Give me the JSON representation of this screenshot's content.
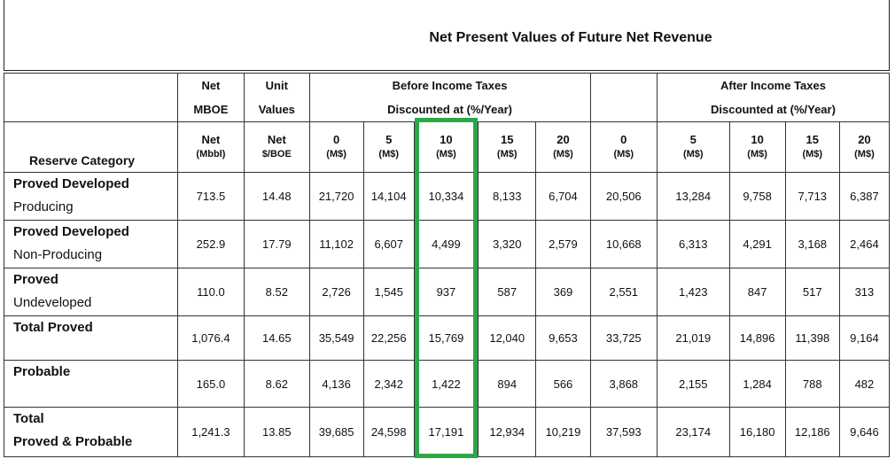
{
  "title": "Net Present Values of Future Net Revenue",
  "header": {
    "net_mboe": [
      "Net",
      "MBOE"
    ],
    "unit_values": [
      "Unit",
      "Values"
    ],
    "before_tax": [
      "Before Income Taxes",
      "Discounted at (%/Year)"
    ],
    "after_tax": [
      "After Income Taxes",
      "Discounted at (%/Year)"
    ],
    "reserve_category": "Reserve Category",
    "subheaders": [
      {
        "top": "Net",
        "bottom": "(Mbbl)"
      },
      {
        "top": "Net",
        "bottom": "$/BOE"
      },
      {
        "top": "0",
        "bottom": "(M$)"
      },
      {
        "top": "5",
        "bottom": "(M$)"
      },
      {
        "top": "10",
        "bottom": "(M$)"
      },
      {
        "top": "15",
        "bottom": "(M$)"
      },
      {
        "top": "20",
        "bottom": "(M$)"
      },
      {
        "top": "0",
        "bottom": "(M$)"
      },
      {
        "top": "5",
        "bottom": "(M$)"
      },
      {
        "top": "10",
        "bottom": "(M$)"
      },
      {
        "top": "15",
        "bottom": "(M$)"
      },
      {
        "top": "20",
        "bottom": "(M$)"
      }
    ]
  },
  "rows": [
    {
      "cat": [
        "Proved Developed",
        "Producing"
      ],
      "values": [
        "713.5",
        "14.48",
        "21,720",
        "14,104",
        "10,334",
        "8,133",
        "6,704",
        "20,506",
        "13,284",
        "9,758",
        "7,713",
        "6,387"
      ]
    },
    {
      "cat": [
        "Proved Developed",
        "Non-Producing"
      ],
      "values": [
        "252.9",
        "17.79",
        "11,102",
        "6,607",
        "4,499",
        "3,320",
        "2,579",
        "10,668",
        "6,313",
        "4,291",
        "3,168",
        "2,464"
      ]
    },
    {
      "cat": [
        "Proved",
        "Undeveloped"
      ],
      "values": [
        "110.0",
        "8.52",
        "2,726",
        "1,545",
        "937",
        "587",
        "369",
        "2,551",
        "1,423",
        "847",
        "517",
        "313"
      ]
    },
    {
      "cat": [
        "Total Proved",
        ""
      ],
      "values": [
        "1,076.4",
        "14.65",
        "35,549",
        "22,256",
        "15,769",
        "12,040",
        "9,653",
        "33,725",
        "21,019",
        "14,896",
        "11,398",
        "9,164"
      ]
    },
    {
      "cat": [
        "Probable",
        ""
      ],
      "values": [
        "165.0",
        "8.62",
        "4,136",
        "2,342",
        "1,422",
        "894",
        "566",
        "3,868",
        "2,155",
        "1,284",
        "788",
        "482"
      ]
    },
    {
      "cat": [
        "Total",
        "Proved & Probable"
      ],
      "values": [
        "1,241.3",
        "13.85",
        "39,685",
        "24,598",
        "17,191",
        "12,934",
        "10,219",
        "37,593",
        "23,174",
        "16,180",
        "12,186",
        "9,646"
      ]
    }
  ],
  "highlight_color": "#2aa846"
}
